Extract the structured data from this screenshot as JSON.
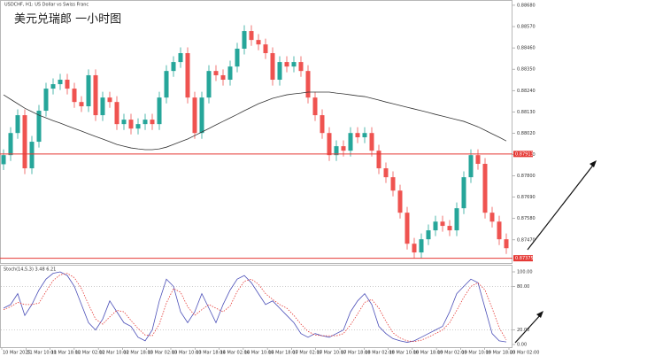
{
  "chart_data": [
    {
      "type": "candlestick",
      "title": "USDCHF, H1:  US Dollar vs Swiss Franc",
      "annotation": "美元兑瑞郎 一小时图",
      "bull_color": "#26a69a",
      "bear_color": "#ef5350",
      "ma_color": "#333333",
      "level_color": "#e53935",
      "open": [
        0.8786,
        0.87907,
        0.88021,
        0.88113,
        0.87839,
        0.87976,
        0.88136,
        0.8825,
        0.88273,
        0.88296,
        0.8825,
        0.88181,
        0.88159,
        0.88319,
        0.88113,
        0.88204,
        0.88181,
        0.88067,
        0.8809,
        0.88044,
        0.88067,
        0.8809,
        0.88067,
        0.88204,
        0.88341,
        0.88387,
        0.88433,
        0.88204,
        0.88021,
        0.88204,
        0.88341,
        0.88319,
        0.88296,
        0.88364,
        0.88456,
        0.88547,
        0.88501,
        0.88478,
        0.88433,
        0.88296,
        0.88387,
        0.88364,
        0.88387,
        0.88341,
        0.88204,
        0.88113,
        0.88021,
        0.87907,
        0.87953,
        0.8793,
        0.88021,
        0.87999,
        0.88021,
        0.8793,
        0.87839,
        0.87793,
        0.87724,
        0.8761,
        0.8745,
        0.87405,
        0.87473,
        0.87519,
        0.87564,
        0.87542,
        0.87519,
        0.87633,
        0.87793,
        0.87907,
        0.87862,
        0.8761,
        0.87564,
        0.87473
      ],
      "high": [
        0.87937,
        0.88051,
        0.88143,
        0.88143,
        0.88006,
        0.88166,
        0.8828,
        0.88303,
        0.88326,
        0.88326,
        0.8828,
        0.88211,
        0.88349,
        0.88349,
        0.88234,
        0.88234,
        0.88211,
        0.8812,
        0.8812,
        0.88097,
        0.8812,
        0.8812,
        0.88234,
        0.88371,
        0.88417,
        0.88463,
        0.88463,
        0.88234,
        0.88234,
        0.88371,
        0.88371,
        0.88349,
        0.88394,
        0.88486,
        0.88577,
        0.88577,
        0.88531,
        0.88508,
        0.88463,
        0.88417,
        0.88417,
        0.88417,
        0.88417,
        0.88371,
        0.88234,
        0.88143,
        0.88051,
        0.87983,
        0.87983,
        0.88051,
        0.88051,
        0.88051,
        0.88051,
        0.8796,
        0.87869,
        0.87823,
        0.87754,
        0.8764,
        0.8748,
        0.87503,
        0.87549,
        0.87594,
        0.87594,
        0.87572,
        0.87663,
        0.87823,
        0.87937,
        0.87937,
        0.87892,
        0.8764,
        0.87594,
        0.87503
      ],
      "low": [
        0.8783,
        0.87877,
        0.87991,
        0.87809,
        0.87809,
        0.87946,
        0.88106,
        0.8822,
        0.88243,
        0.8822,
        0.88151,
        0.88129,
        0.88129,
        0.88083,
        0.88083,
        0.88151,
        0.88037,
        0.88037,
        0.88014,
        0.88014,
        0.88037,
        0.88037,
        0.88037,
        0.88174,
        0.88311,
        0.88357,
        0.88174,
        0.87991,
        0.87991,
        0.88174,
        0.88289,
        0.88266,
        0.88266,
        0.88334,
        0.88426,
        0.88471,
        0.88448,
        0.88403,
        0.88266,
        0.88266,
        0.88334,
        0.88334,
        0.88311,
        0.88174,
        0.88083,
        0.87991,
        0.87877,
        0.87877,
        0.879,
        0.879,
        0.87969,
        0.87969,
        0.879,
        0.87809,
        0.87763,
        0.87694,
        0.8758,
        0.8742,
        0.87375,
        0.87375,
        0.87443,
        0.87489,
        0.87512,
        0.87489,
        0.87489,
        0.87603,
        0.87763,
        0.87832,
        0.8758,
        0.87534,
        0.87443,
        0.87397
      ],
      "close": [
        0.87907,
        0.88021,
        0.88113,
        0.87839,
        0.87976,
        0.88136,
        0.8825,
        0.88273,
        0.88296,
        0.8825,
        0.88181,
        0.88159,
        0.88319,
        0.88113,
        0.88204,
        0.88181,
        0.88067,
        0.8809,
        0.88044,
        0.88067,
        0.8809,
        0.88067,
        0.88204,
        0.88341,
        0.88387,
        0.88433,
        0.88204,
        0.88021,
        0.88204,
        0.88341,
        0.88319,
        0.88296,
        0.88364,
        0.88456,
        0.88547,
        0.88501,
        0.88478,
        0.88433,
        0.88296,
        0.88387,
        0.88364,
        0.88387,
        0.88341,
        0.88204,
        0.88113,
        0.88021,
        0.87907,
        0.87953,
        0.8793,
        0.88021,
        0.87999,
        0.88021,
        0.8793,
        0.87839,
        0.87793,
        0.87724,
        0.8761,
        0.8745,
        0.87405,
        0.87473,
        0.87519,
        0.87564,
        0.87542,
        0.87519,
        0.87633,
        0.87793,
        0.87907,
        0.87862,
        0.8761,
        0.87564,
        0.87473,
        0.87427
      ],
      "ma": [
        0.88218,
        0.88195,
        0.88172,
        0.88149,
        0.88131,
        0.88113,
        0.88099,
        0.88085,
        0.88072,
        0.88058,
        0.88044,
        0.88031,
        0.88017,
        0.88003,
        0.8799,
        0.87976,
        0.87962,
        0.87953,
        0.87944,
        0.87939,
        0.87935,
        0.87935,
        0.87939,
        0.87948,
        0.87962,
        0.87976,
        0.8799,
        0.88008,
        0.88026,
        0.88044,
        0.88063,
        0.88081,
        0.88099,
        0.88117,
        0.88136,
        0.88154,
        0.88172,
        0.88186,
        0.882,
        0.88209,
        0.88218,
        0.88223,
        0.88227,
        0.88232,
        0.88232,
        0.88232,
        0.88232,
        0.88227,
        0.88223,
        0.88218,
        0.88213,
        0.88209,
        0.882,
        0.88191,
        0.88181,
        0.88172,
        0.88163,
        0.88154,
        0.88145,
        0.88136,
        0.88127,
        0.88117,
        0.88108,
        0.88099,
        0.8809,
        0.88081,
        0.88067,
        0.88053,
        0.88035,
        0.88017,
        0.87999,
        0.8798
      ],
      "levels": [
        {
          "value": 0.87913,
          "label": "0.87913"
        },
        {
          "value": 0.87375,
          "label": "0.87375"
        }
      ],
      "ylim": [
        0.87355,
        0.88698
      ],
      "yticks": [
        {
          "value": 0.8868,
          "label": "0.88680"
        },
        {
          "value": 0.8857,
          "label": "0.88570"
        },
        {
          "value": 0.8846,
          "label": "0.88460"
        },
        {
          "value": 0.8835,
          "label": "0.88350"
        },
        {
          "value": 0.8824,
          "label": "0.88240"
        },
        {
          "value": 0.8813,
          "label": "0.88130"
        },
        {
          "value": 0.8802,
          "label": "0.88020"
        },
        {
          "value": 0.8791,
          "label": "0.87910"
        },
        {
          "value": 0.878,
          "label": "0.87800"
        },
        {
          "value": 0.8769,
          "label": "0.87690"
        },
        {
          "value": 0.8758,
          "label": "0.87580"
        },
        {
          "value": 0.8747,
          "label": "0.87470"
        }
      ],
      "time_labels": [
        "10 Mar 2025",
        "11 Mar 10:00",
        "11 Mar 18:00",
        "12 Mar 02:00",
        "12 Mar 10:00",
        "12 Mar 18:00",
        "13 Mar 02:00",
        "13 Mar 10:00",
        "13 Mar 18:00",
        "14 Mar 02:00",
        "14 Mar 10:00",
        "14 Mar 18:00",
        "17 Mar 02:00",
        "17 Mar 10:00",
        "17 Mar 18:00",
        "18 Mar 02:00",
        "18 Mar 10:00",
        "18 Mar 18:00",
        "19 Mar 02:00",
        "19 Mar 10:00",
        "19 Mar 18:00",
        "20 Mar 02:00"
      ]
    },
    {
      "type": "line",
      "title": "Stoch(14,5,3) 3.48 6.21",
      "series": [
        {
          "name": "Main",
          "color": "#4b4fb8",
          "values": [
            50,
            55,
            70,
            40,
            55,
            75,
            90,
            98,
            100,
            95,
            80,
            55,
            30,
            20,
            35,
            60,
            45,
            30,
            25,
            10,
            5,
            20,
            60,
            90,
            80,
            45,
            30,
            45,
            70,
            50,
            30,
            55,
            75,
            90,
            95,
            85,
            70,
            55,
            60,
            50,
            40,
            30,
            15,
            10,
            15,
            12,
            10,
            15,
            20,
            45,
            60,
            70,
            55,
            25,
            15,
            8,
            5,
            3,
            5,
            10,
            15,
            20,
            25,
            45,
            70,
            80,
            90,
            85,
            50,
            15,
            5,
            3.48
          ]
        },
        {
          "name": "Signal",
          "color": "#e53935",
          "dashed": true,
          "values": [
            48,
            52,
            58,
            55,
            55,
            57,
            73,
            88,
            96,
            98,
            92,
            77,
            55,
            35,
            28,
            38,
            47,
            45,
            33,
            22,
            13,
            12,
            28,
            57,
            77,
            72,
            52,
            40,
            48,
            55,
            50,
            45,
            53,
            73,
            87,
            90,
            83,
            70,
            62,
            55,
            50,
            40,
            28,
            18,
            13,
            12,
            12,
            12,
            15,
            27,
            42,
            58,
            62,
            50,
            32,
            16,
            9,
            5,
            4,
            6,
            10,
            15,
            20,
            30,
            47,
            65,
            80,
            85,
            75,
            50,
            23,
            6.21
          ]
        }
      ],
      "ylim": [
        0,
        100
      ],
      "yticks": [
        {
          "value": 100,
          "label": "100.00"
        },
        {
          "value": 80,
          "label": "80.00"
        },
        {
          "value": 20,
          "label": "20.00"
        },
        {
          "value": 0,
          "label": "0.00"
        }
      ],
      "grid_levels": [
        80,
        20
      ]
    }
  ]
}
